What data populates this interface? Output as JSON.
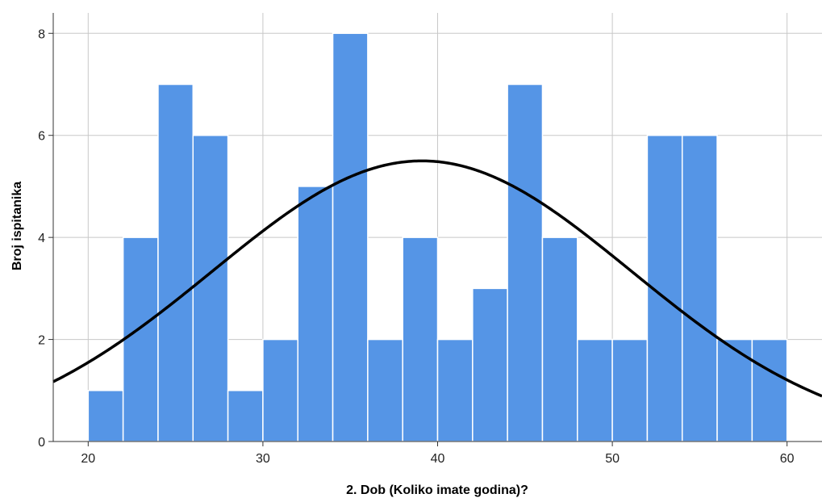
{
  "chart_data": {
    "type": "bar",
    "subtype": "histogram",
    "title": "",
    "xlabel": "2. Dob (Koliko imate godina)?",
    "ylabel": "Broj ispitanika",
    "xlim": [
      18,
      62
    ],
    "ylim": [
      0,
      8.4
    ],
    "x_ticks": [
      20,
      30,
      40,
      50,
      60
    ],
    "y_ticks": [
      0,
      2,
      4,
      6,
      8
    ],
    "grid": true,
    "legend": "none",
    "bin_width": 2,
    "bins": [
      {
        "start": 20,
        "end": 22,
        "count": 1
      },
      {
        "start": 22,
        "end": 24,
        "count": 4
      },
      {
        "start": 24,
        "end": 26,
        "count": 7
      },
      {
        "start": 26,
        "end": 28,
        "count": 6
      },
      {
        "start": 28,
        "end": 30,
        "count": 1
      },
      {
        "start": 30,
        "end": 32,
        "count": 2
      },
      {
        "start": 32,
        "end": 34,
        "count": 5
      },
      {
        "start": 34,
        "end": 36,
        "count": 8
      },
      {
        "start": 36,
        "end": 38,
        "count": 2
      },
      {
        "start": 38,
        "end": 40,
        "count": 4
      },
      {
        "start": 40,
        "end": 42,
        "count": 2
      },
      {
        "start": 42,
        "end": 44,
        "count": 3
      },
      {
        "start": 44,
        "end": 46,
        "count": 7
      },
      {
        "start": 46,
        "end": 48,
        "count": 4
      },
      {
        "start": 48,
        "end": 50,
        "count": 2
      },
      {
        "start": 50,
        "end": 52,
        "count": 2
      },
      {
        "start": 52,
        "end": 54,
        "count": 6
      },
      {
        "start": 54,
        "end": 56,
        "count": 6
      },
      {
        "start": 56,
        "end": 58,
        "count": 2
      },
      {
        "start": 58,
        "end": 60,
        "count": 2
      }
    ],
    "normal_curve": {
      "mean": 39.1,
      "sd": 12.0,
      "peak": 5.5
    },
    "colors": {
      "bar": "#5595e6",
      "bar_edge": "#ffffff",
      "curve": "#000000",
      "grid": "#c8c8c8",
      "axis": "#333333"
    }
  }
}
